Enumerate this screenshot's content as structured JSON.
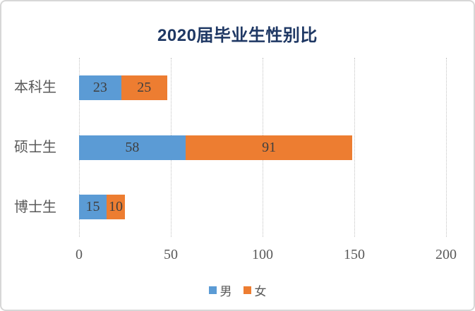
{
  "chart_data": {
    "type": "bar",
    "orientation": "horizontal",
    "stacked": true,
    "title": "2020届毕业生性别比",
    "categories": [
      "本科生",
      "硕士生",
      "博士生"
    ],
    "series": [
      {
        "name": "男",
        "color": "#5B9BD5",
        "values": [
          23,
          58,
          15
        ]
      },
      {
        "name": "女",
        "color": "#ED7D31",
        "values": [
          25,
          91,
          10
        ]
      }
    ],
    "x_ticks": [
      0,
      50,
      100,
      150,
      200
    ],
    "xlim": [
      0,
      200
    ],
    "grid": "vertical-dotted",
    "data_labels": "inside-center",
    "legend_position": "bottom"
  },
  "colors": {
    "male_blue": "#5B9BD5",
    "female_orange": "#ED7D31",
    "title_navy": "#1F3864",
    "axis_text": "#595959",
    "data_label_text": "#3F3F3F",
    "gridline": "#C2C2C2",
    "chart_border": "#D7D7D7",
    "background": "#FFFFFF"
  }
}
